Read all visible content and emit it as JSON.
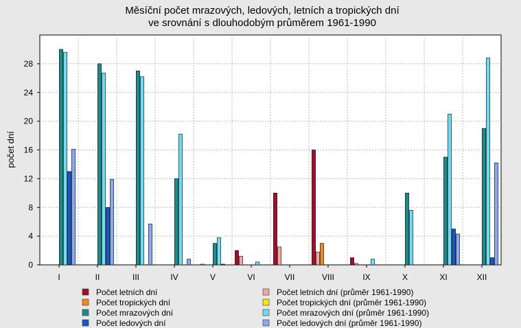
{
  "chart_data": {
    "type": "bar",
    "title": [
      "Měsíční počet mrazových, ledových, letních a tropických dní",
      "ve srovnání s dlouhodobým průměrem 1961-1990"
    ],
    "ylabel": "počet dní",
    "xlabel": "",
    "ylim": [
      0,
      32
    ],
    "yticks": [
      0,
      4,
      8,
      12,
      16,
      20,
      24,
      28
    ],
    "grid": true,
    "legend_position": "bottom",
    "categories": [
      "I",
      "II",
      "III",
      "IV",
      "V",
      "VI",
      "VII",
      "VIII",
      "IX",
      "X",
      "XI",
      "XII"
    ],
    "series": [
      {
        "name": "Počet letních dní",
        "color": "#a0102a",
        "values": [
          0,
          0,
          0,
          0,
          0,
          2,
          10,
          16,
          1,
          0,
          0,
          0
        ]
      },
      {
        "name": "Počet letních dní (průměr 1961-1990)",
        "color": "#f4a6a0",
        "values": [
          0,
          0,
          0,
          0,
          0.1,
          1.2,
          2.5,
          1.8,
          0.2,
          0,
          0,
          0
        ]
      },
      {
        "name": "Počet tropických dní",
        "color": "#f08a1c",
        "values": [
          0,
          0,
          0,
          0,
          0,
          0,
          0,
          3,
          0,
          0,
          0,
          0
        ]
      },
      {
        "name": "Počet tropických dní (průměr 1961-1990)",
        "color": "#f5e61a",
        "values": [
          0,
          0,
          0,
          0,
          0,
          0,
          0,
          0,
          0,
          0,
          0,
          0
        ]
      },
      {
        "name": "Počet mrazových dní",
        "color": "#1f8a8a",
        "values": [
          30,
          28,
          27,
          12,
          3,
          0,
          0,
          0,
          0,
          10,
          15,
          19
        ]
      },
      {
        "name": "Počet mrazových dní (průměr 1961-1990)",
        "color": "#6fdcf2",
        "values": [
          29.6,
          26.7,
          26.2,
          18.2,
          3.8,
          0.4,
          0,
          0,
          0.8,
          7.6,
          21,
          28.8
        ]
      },
      {
        "name": "Počet ledových dní",
        "color": "#1c56c0",
        "values": [
          13,
          8,
          0,
          0,
          0.1,
          0,
          0,
          0,
          0,
          0,
          5,
          1
        ]
      },
      {
        "name": "Počet ledových dní (průměr 1961-1990)",
        "color": "#8caaf0",
        "values": [
          16.1,
          11.9,
          5.7,
          0.8,
          0,
          0,
          0,
          0,
          0,
          0,
          4.3,
          14.2
        ]
      }
    ]
  }
}
